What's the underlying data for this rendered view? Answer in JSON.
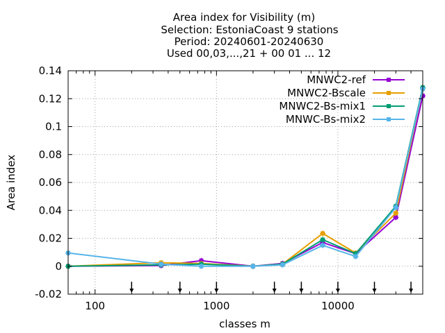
{
  "chart_data": {
    "type": "line",
    "title_lines": [
      "Area index  for Visibility (m)",
      "Selection: EstoniaCoast      9 stations",
      "Period: 20240601-20240630",
      "Used 00,03,...,21 + 00 01 ... 12"
    ],
    "xlabel": "classes m",
    "ylabel": "Area index",
    "x_scale": "log",
    "xlim": [
      60,
      50000
    ],
    "ylim": [
      -0.02,
      0.14
    ],
    "x_ticks": [
      {
        "value": 100,
        "label": "100"
      },
      {
        "value": 1000,
        "label": "1000"
      },
      {
        "value": 10000,
        "label": "10000"
      }
    ],
    "y_ticks": [
      {
        "value": -0.02,
        "label": "-0.02"
      },
      {
        "value": 0,
        "label": "0"
      },
      {
        "value": 0.02,
        "label": "0.02"
      },
      {
        "value": 0.04,
        "label": "0.04"
      },
      {
        "value": 0.06,
        "label": "0.06"
      },
      {
        "value": 0.08,
        "label": "0.08"
      },
      {
        "value": 0.1,
        "label": "0.1"
      },
      {
        "value": 0.12,
        "label": "0.12"
      },
      {
        "value": 0.14,
        "label": "0.14"
      }
    ],
    "grid": true,
    "legend_position": "top-right",
    "threshold_arrows": [
      200,
      500,
      1000,
      3000,
      5000,
      10000,
      20000,
      40000
    ],
    "series": [
      {
        "name": "MNWC2-ref",
        "color": "#9400d3",
        "x": [
          60,
          350,
          750,
          2000,
          3500,
          7500,
          14000,
          30000,
          50000
        ],
        "y": [
          0.0,
          0.0005,
          0.004,
          0.0,
          0.002,
          0.017,
          0.009,
          0.035,
          0.122
        ]
      },
      {
        "name": "MNWC2-Bscale",
        "color": "#e69f00",
        "x": [
          60,
          350,
          750,
          2000,
          3500,
          7500,
          14000,
          30000,
          50000
        ],
        "y": [
          0.0,
          0.0025,
          0.002,
          0.0,
          0.0015,
          0.0235,
          0.0095,
          0.038,
          0.127
        ]
      },
      {
        "name": "MNWC2-Bs-mix1",
        "color": "#009e73",
        "x": [
          60,
          350,
          750,
          2000,
          3500,
          7500,
          14000,
          30000,
          50000
        ],
        "y": [
          0.0,
          0.001,
          0.0015,
          0.0,
          0.0015,
          0.019,
          0.009,
          0.043,
          0.128
        ]
      },
      {
        "name": "MNWC-Bs-mix2",
        "color": "#56b4e9",
        "x": [
          60,
          350,
          750,
          2000,
          3500,
          7500,
          14000,
          30000,
          50000
        ],
        "y": [
          0.0095,
          0.0015,
          0.0,
          0.0,
          0.001,
          0.015,
          0.007,
          0.042,
          0.127
        ]
      }
    ]
  }
}
